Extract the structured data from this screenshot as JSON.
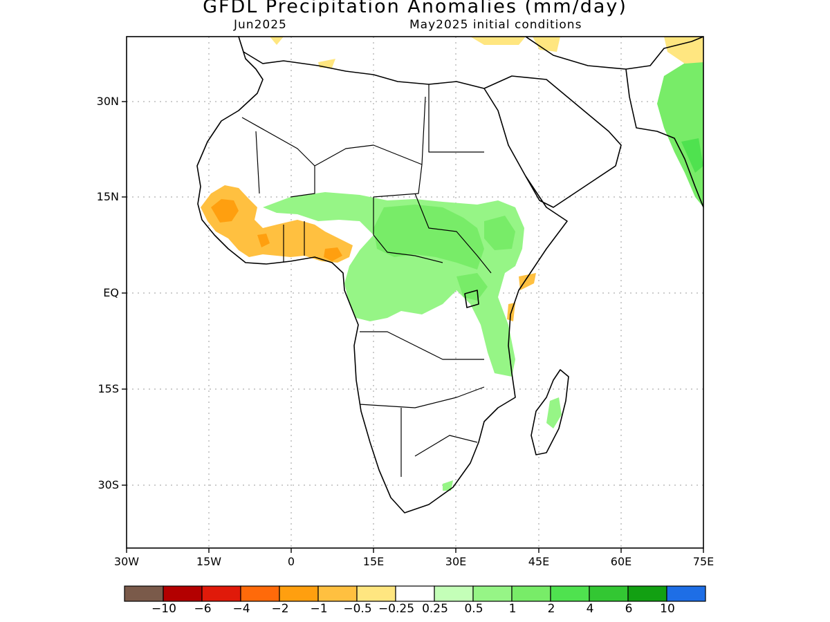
{
  "title": "GFDL Precipitation Anomalies (mm/day)",
  "subtitle_left": "Jun2025",
  "subtitle_right": "May2025 initial conditions",
  "y_ticks": [
    "30N",
    "15N",
    "EQ",
    "15S",
    "30S"
  ],
  "x_ticks": [
    "30W",
    "15W",
    "0",
    "15E",
    "30E",
    "45E",
    "60E",
    "75E"
  ],
  "colorbar": {
    "colors": [
      "#7a5a4a",
      "#b30000",
      "#e01a0a",
      "#ff6a0a",
      "#ff9f0f",
      "#ffc040",
      "#ffe680",
      "#ffffff",
      "#c4ffb8",
      "#96f586",
      "#78ec68",
      "#4fe24f",
      "#33c733",
      "#12a012",
      "#1e6ee6"
    ],
    "labels": [
      "−10",
      "−6",
      "−4",
      "−2",
      "−1",
      "−0.5",
      "−0.25",
      "0.25",
      "0.5",
      "1",
      "2",
      "4",
      "6",
      "10"
    ]
  }
}
